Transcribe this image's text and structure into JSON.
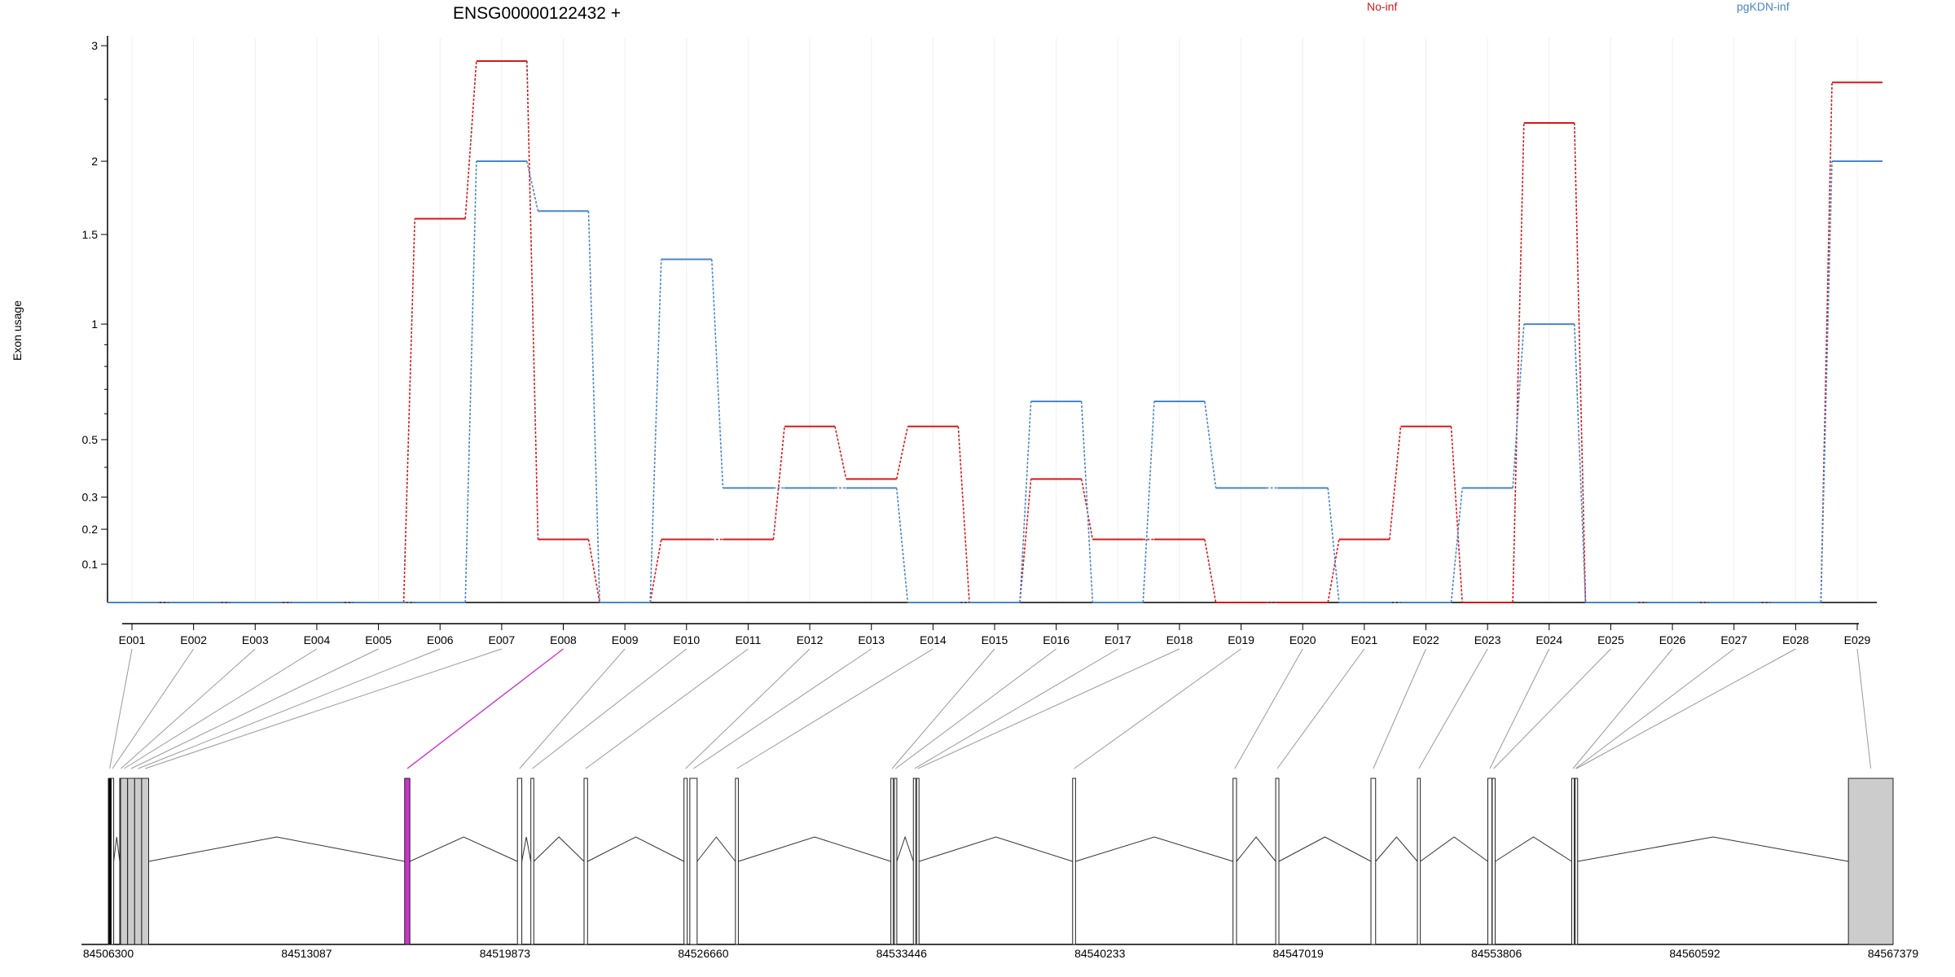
{
  "chart_data": {
    "type": "line",
    "title": "ENSG00000122432 +",
    "ylabel": "Exon usage",
    "xlabel": "",
    "scale": "log(y+1)",
    "ylim": [
      0,
      3.05
    ],
    "yticks": [
      0.1,
      0.2,
      0.3,
      0.5,
      1,
      1.5,
      2,
      3
    ],
    "ytick_labels": [
      "0.1",
      "0.2",
      "0.3",
      "0.5",
      "1",
      "1.5",
      "2",
      "3"
    ],
    "grid": "vertical",
    "legend_position": "top",
    "categories": [
      "E001",
      "E002",
      "E003",
      "E004",
      "E005",
      "E006",
      "E007",
      "E008",
      "E009",
      "E010",
      "E011",
      "E012",
      "E013",
      "E014",
      "E015",
      "E016",
      "E017",
      "E018",
      "E019",
      "E020",
      "E021",
      "E022",
      "E023",
      "E024",
      "E025",
      "E026",
      "E027",
      "E028",
      "E029"
    ],
    "series": [
      {
        "name": "No-inf",
        "color": "#d7191c",
        "values": [
          0,
          0,
          0,
          0,
          0,
          1.6,
          2.85,
          0.17,
          0,
          0.17,
          0.17,
          0.55,
          0.36,
          0.55,
          0,
          0.36,
          0.17,
          0.17,
          0,
          0,
          0.17,
          0.55,
          0,
          2.3,
          0,
          0,
          0,
          0,
          2.65
        ]
      },
      {
        "name": "pgKDN-inf",
        "color": "#4a86c8",
        "values": [
          0,
          0,
          0,
          0,
          0,
          0,
          2.0,
          1.65,
          0,
          1.35,
          0.33,
          0.33,
          0.33,
          0,
          0,
          0.65,
          0,
          0.65,
          0.33,
          0.33,
          0,
          0,
          0.33,
          1.0,
          0,
          0,
          0,
          0,
          2.0
        ]
      }
    ],
    "gene_model": {
      "coordinates": [
        "84506300",
        "84513087",
        "84519873",
        "84526660",
        "84533446",
        "84540233",
        "84547019",
        "84553806",
        "84560592",
        "84567379"
      ],
      "coord_range": [
        84506300,
        84567379
      ],
      "highlighted_exon": "E008",
      "highlight_color": "#cc33cc",
      "exon_fill": "#cccccc",
      "exons": [
        {
          "id": "E001",
          "start": 84506300,
          "end": 84506390,
          "fill": "#000000"
        },
        {
          "id": "E002",
          "start": 84506400,
          "end": 84506420,
          "fill": "#ffffff"
        },
        {
          "id": "E003",
          "start": 84506690,
          "end": 84506710,
          "fill": "#ffffff"
        },
        {
          "id": "E004",
          "start": 84506720,
          "end": 84506960,
          "fill": "#cccccc"
        },
        {
          "id": "E005",
          "start": 84506960,
          "end": 84507200,
          "fill": "#cccccc"
        },
        {
          "id": "E006",
          "start": 84507200,
          "end": 84507440,
          "fill": "#cccccc"
        },
        {
          "id": "E007",
          "start": 84507440,
          "end": 84507680,
          "fill": "#cccccc"
        },
        {
          "id": "E008",
          "start": 84516440,
          "end": 84516620,
          "fill": "#cc33cc"
        },
        {
          "id": "E009",
          "start": 84520300,
          "end": 84520450,
          "fill": "#ffffff"
        },
        {
          "id": "E010",
          "start": 84520760,
          "end": 84520860,
          "fill": "#ffffff"
        },
        {
          "id": "E011",
          "start": 84522580,
          "end": 84522700,
          "fill": "#ffffff"
        },
        {
          "id": "E012",
          "start": 84526000,
          "end": 84526110,
          "fill": "#ffffff"
        },
        {
          "id": "E013",
          "start": 84526200,
          "end": 84526450,
          "fill": "#ffffff"
        },
        {
          "id": "E014",
          "start": 84527760,
          "end": 84527860,
          "fill": "#ffffff"
        },
        {
          "id": "E015",
          "start": 84533080,
          "end": 84533160,
          "fill": "#ffffff"
        },
        {
          "id": "E016",
          "start": 84533200,
          "end": 84533260,
          "fill": "#ffffff"
        },
        {
          "id": "E017",
          "start": 84533850,
          "end": 84533920,
          "fill": "#ffffff"
        },
        {
          "id": "E018",
          "start": 84533960,
          "end": 84534030,
          "fill": "#ffffff"
        },
        {
          "id": "E019",
          "start": 84539300,
          "end": 84539400,
          "fill": "#ffffff"
        },
        {
          "id": "E020",
          "start": 84544790,
          "end": 84544910,
          "fill": "#ffffff"
        },
        {
          "id": "E021",
          "start": 84546250,
          "end": 84546360,
          "fill": "#ffffff"
        },
        {
          "id": "E022",
          "start": 84549510,
          "end": 84549670,
          "fill": "#ffffff"
        },
        {
          "id": "E023",
          "start": 84551100,
          "end": 84551200,
          "fill": "#ffffff"
        },
        {
          "id": "E024",
          "start": 84553510,
          "end": 84553650,
          "fill": "#ffffff"
        },
        {
          "id": "E025",
          "start": 84553660,
          "end": 84553760,
          "fill": "#ffffff"
        },
        {
          "id": "E026",
          "start": 84556380,
          "end": 84556470,
          "fill": "#ffffff"
        },
        {
          "id": "E027",
          "start": 84556470,
          "end": 84556500,
          "fill": "#ffffff"
        },
        {
          "id": "E028",
          "start": 84556500,
          "end": 84556530,
          "fill": "#ffffff"
        },
        {
          "id": "E029",
          "start": 84565850,
          "end": 84567379,
          "fill": "#cccccc"
        }
      ]
    }
  }
}
